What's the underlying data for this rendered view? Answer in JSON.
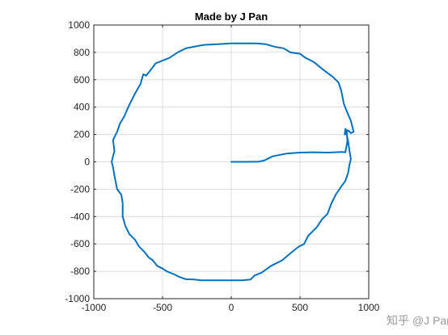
{
  "chart_data": {
    "type": "line",
    "title": "Made by J Pan",
    "xlabel": "",
    "ylabel": "",
    "xlim": [
      -1000,
      1000
    ],
    "ylim": [
      -1000,
      1000
    ],
    "xticks": [
      -1000,
      -500,
      0,
      500,
      1000
    ],
    "yticks": [
      -1000,
      -800,
      -600,
      -400,
      -200,
      0,
      200,
      400,
      600,
      800,
      1000
    ],
    "grid": true,
    "series_color": "#0072BD",
    "series": [
      {
        "x": [
          0,
          100,
          200,
          240,
          300,
          400,
          500,
          600,
          700,
          760,
          800,
          830,
          845,
          840,
          830,
          825,
          850,
          870,
          890,
          870,
          840,
          820,
          800,
          780,
          740,
          700,
          660,
          600,
          540,
          500,
          430,
          380,
          320,
          250,
          180,
          120,
          60,
          0,
          -100,
          -200,
          -280,
          -330,
          -390,
          -420,
          -450,
          -500,
          -550,
          -580,
          -620,
          -640,
          -660,
          -700,
          -740,
          -780,
          -810,
          -830,
          -860,
          -850,
          -870,
          -860,
          -850,
          -830,
          -800,
          -790,
          -790,
          -770,
          -740,
          -700,
          -670,
          -630,
          -600,
          -570,
          -540,
          -500,
          -470,
          -420,
          -380,
          -330,
          -270,
          -220,
          -160,
          -80,
          0,
          80,
          140,
          170,
          220,
          290,
          370,
          440,
          490,
          530,
          560,
          620,
          660,
          700,
          730,
          760,
          800,
          830,
          850,
          860,
          870,
          860,
          850,
          840,
          830
        ],
        "y": [
          0,
          0,
          2,
          10,
          40,
          60,
          68,
          70,
          68,
          70,
          72,
          70,
          150,
          230,
          240,
          200,
          230,
          210,
          220,
          300,
          370,
          420,
          520,
          580,
          620,
          650,
          680,
          730,
          760,
          790,
          800,
          830,
          840,
          860,
          866,
          866,
          866,
          866,
          860,
          855,
          840,
          830,
          800,
          780,
          760,
          740,
          720,
          680,
          630,
          640,
          570,
          500,
          420,
          330,
          280,
          220,
          160,
          80,
          0,
          -40,
          -100,
          -200,
          -240,
          -300,
          -400,
          -470,
          -530,
          -570,
          -620,
          -660,
          -700,
          -720,
          -760,
          -780,
          -800,
          -820,
          -840,
          -858,
          -860,
          -866,
          -866,
          -866,
          -866,
          -866,
          -860,
          -830,
          -810,
          -760,
          -720,
          -660,
          -620,
          -600,
          -540,
          -480,
          -420,
          -380,
          -300,
          -240,
          -180,
          -140,
          -80,
          -20,
          20,
          80,
          150,
          200,
          240
        ]
      }
    ]
  },
  "watermark": "知乎 @J Pan"
}
